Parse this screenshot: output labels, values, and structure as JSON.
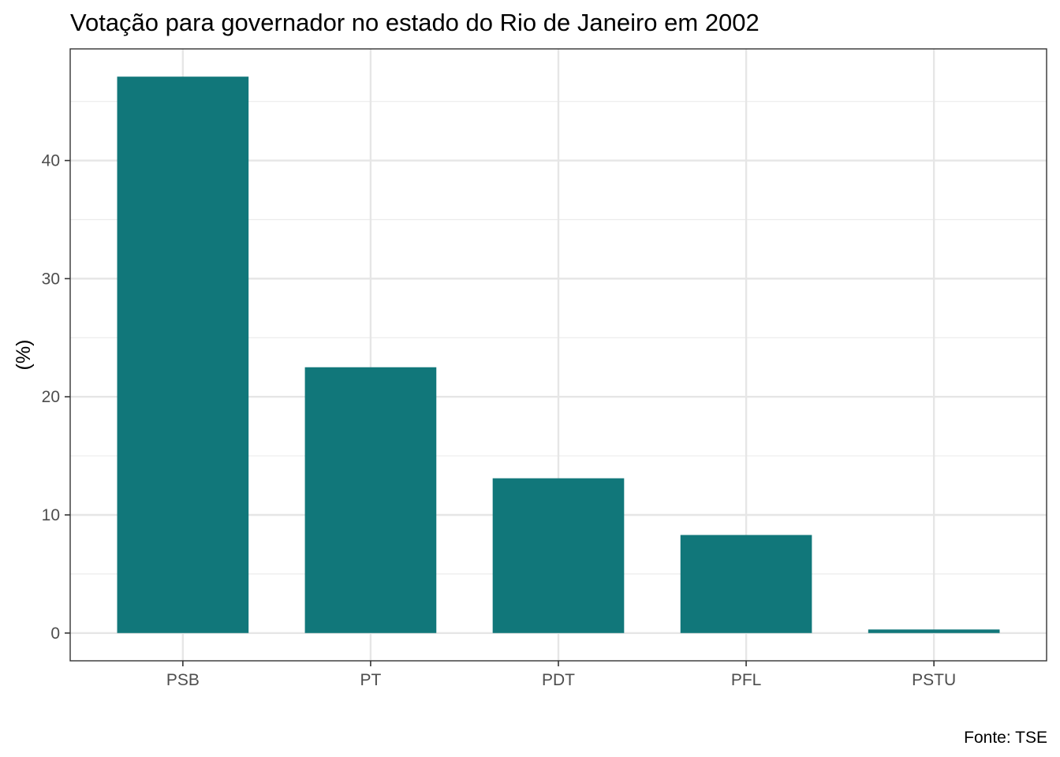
{
  "chart_data": {
    "type": "bar",
    "title": "Votação para governador no estado do Rio de Janeiro em 2002",
    "xlabel": "",
    "ylabel": "(%)",
    "caption": "Fonte: TSE",
    "categories": [
      "PSB",
      "PT",
      "PDT",
      "PFL",
      "PSTU"
    ],
    "values": [
      47.1,
      22.5,
      13.1,
      8.3,
      0.3
    ],
    "ylim": [
      -2.35,
      49.45
    ],
    "yticks": [
      0,
      10,
      20,
      30,
      40
    ],
    "ytick_labels": [
      "0",
      "10",
      "20",
      "30",
      "40"
    ],
    "grid": true,
    "legend": "none",
    "colors": {
      "bar": "#11777A",
      "grid": "#e6e6e6",
      "border": "#333333"
    }
  }
}
